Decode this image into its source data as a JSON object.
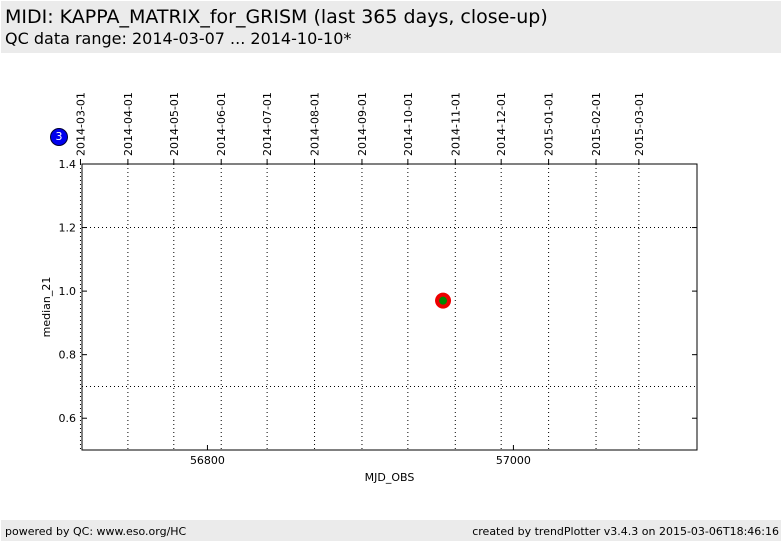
{
  "header": {
    "title": "MIDI: KAPPA_MATRIX_for_GRISM (last 365 days, close-up)",
    "subtitle": "QC data range: 2014-03-07 ... 2014-10-10*"
  },
  "badge": {
    "count": "3",
    "color": "#0000ee"
  },
  "footer": {
    "left": "powered by QC: www.eso.org/HC",
    "right": "created by trendPlotter v3.4.3 on 2015-03-06T18:46:16"
  },
  "chart_data": {
    "type": "scatter",
    "xlabel": "MJD_OBS",
    "ylabel": "median_21",
    "xlim": [
      56718,
      57120
    ],
    "ylim": [
      0.5,
      1.4
    ],
    "x_ticks": [
      56800,
      57000
    ],
    "y_ticks": [
      0.6,
      0.8,
      1.0,
      1.2,
      1.4
    ],
    "y_tick_labels": [
      "0.6",
      "0.8",
      "1.0",
      "1.2",
      "1.4"
    ],
    "top_axis": {
      "labels": [
        "2014-03-01",
        "2014-04-01",
        "2014-05-01",
        "2014-06-01",
        "2014-07-01",
        "2014-08-01",
        "2014-09-01",
        "2014-10-01",
        "2014-11-01",
        "2014-12-01",
        "2015-01-01",
        "2015-02-01",
        "2015-03-01"
      ],
      "mjd": [
        56717,
        56748,
        56778,
        56809,
        56839,
        56870,
        56901,
        56931,
        56962,
        56992,
        57023,
        57054,
        57082
      ]
    },
    "reference_lines": [
      1.2,
      0.7
    ],
    "points": [
      {
        "x": 56954,
        "y": 0.97,
        "outer_color": "#ee0000",
        "inner_color": "#008800"
      }
    ],
    "grid": true
  }
}
